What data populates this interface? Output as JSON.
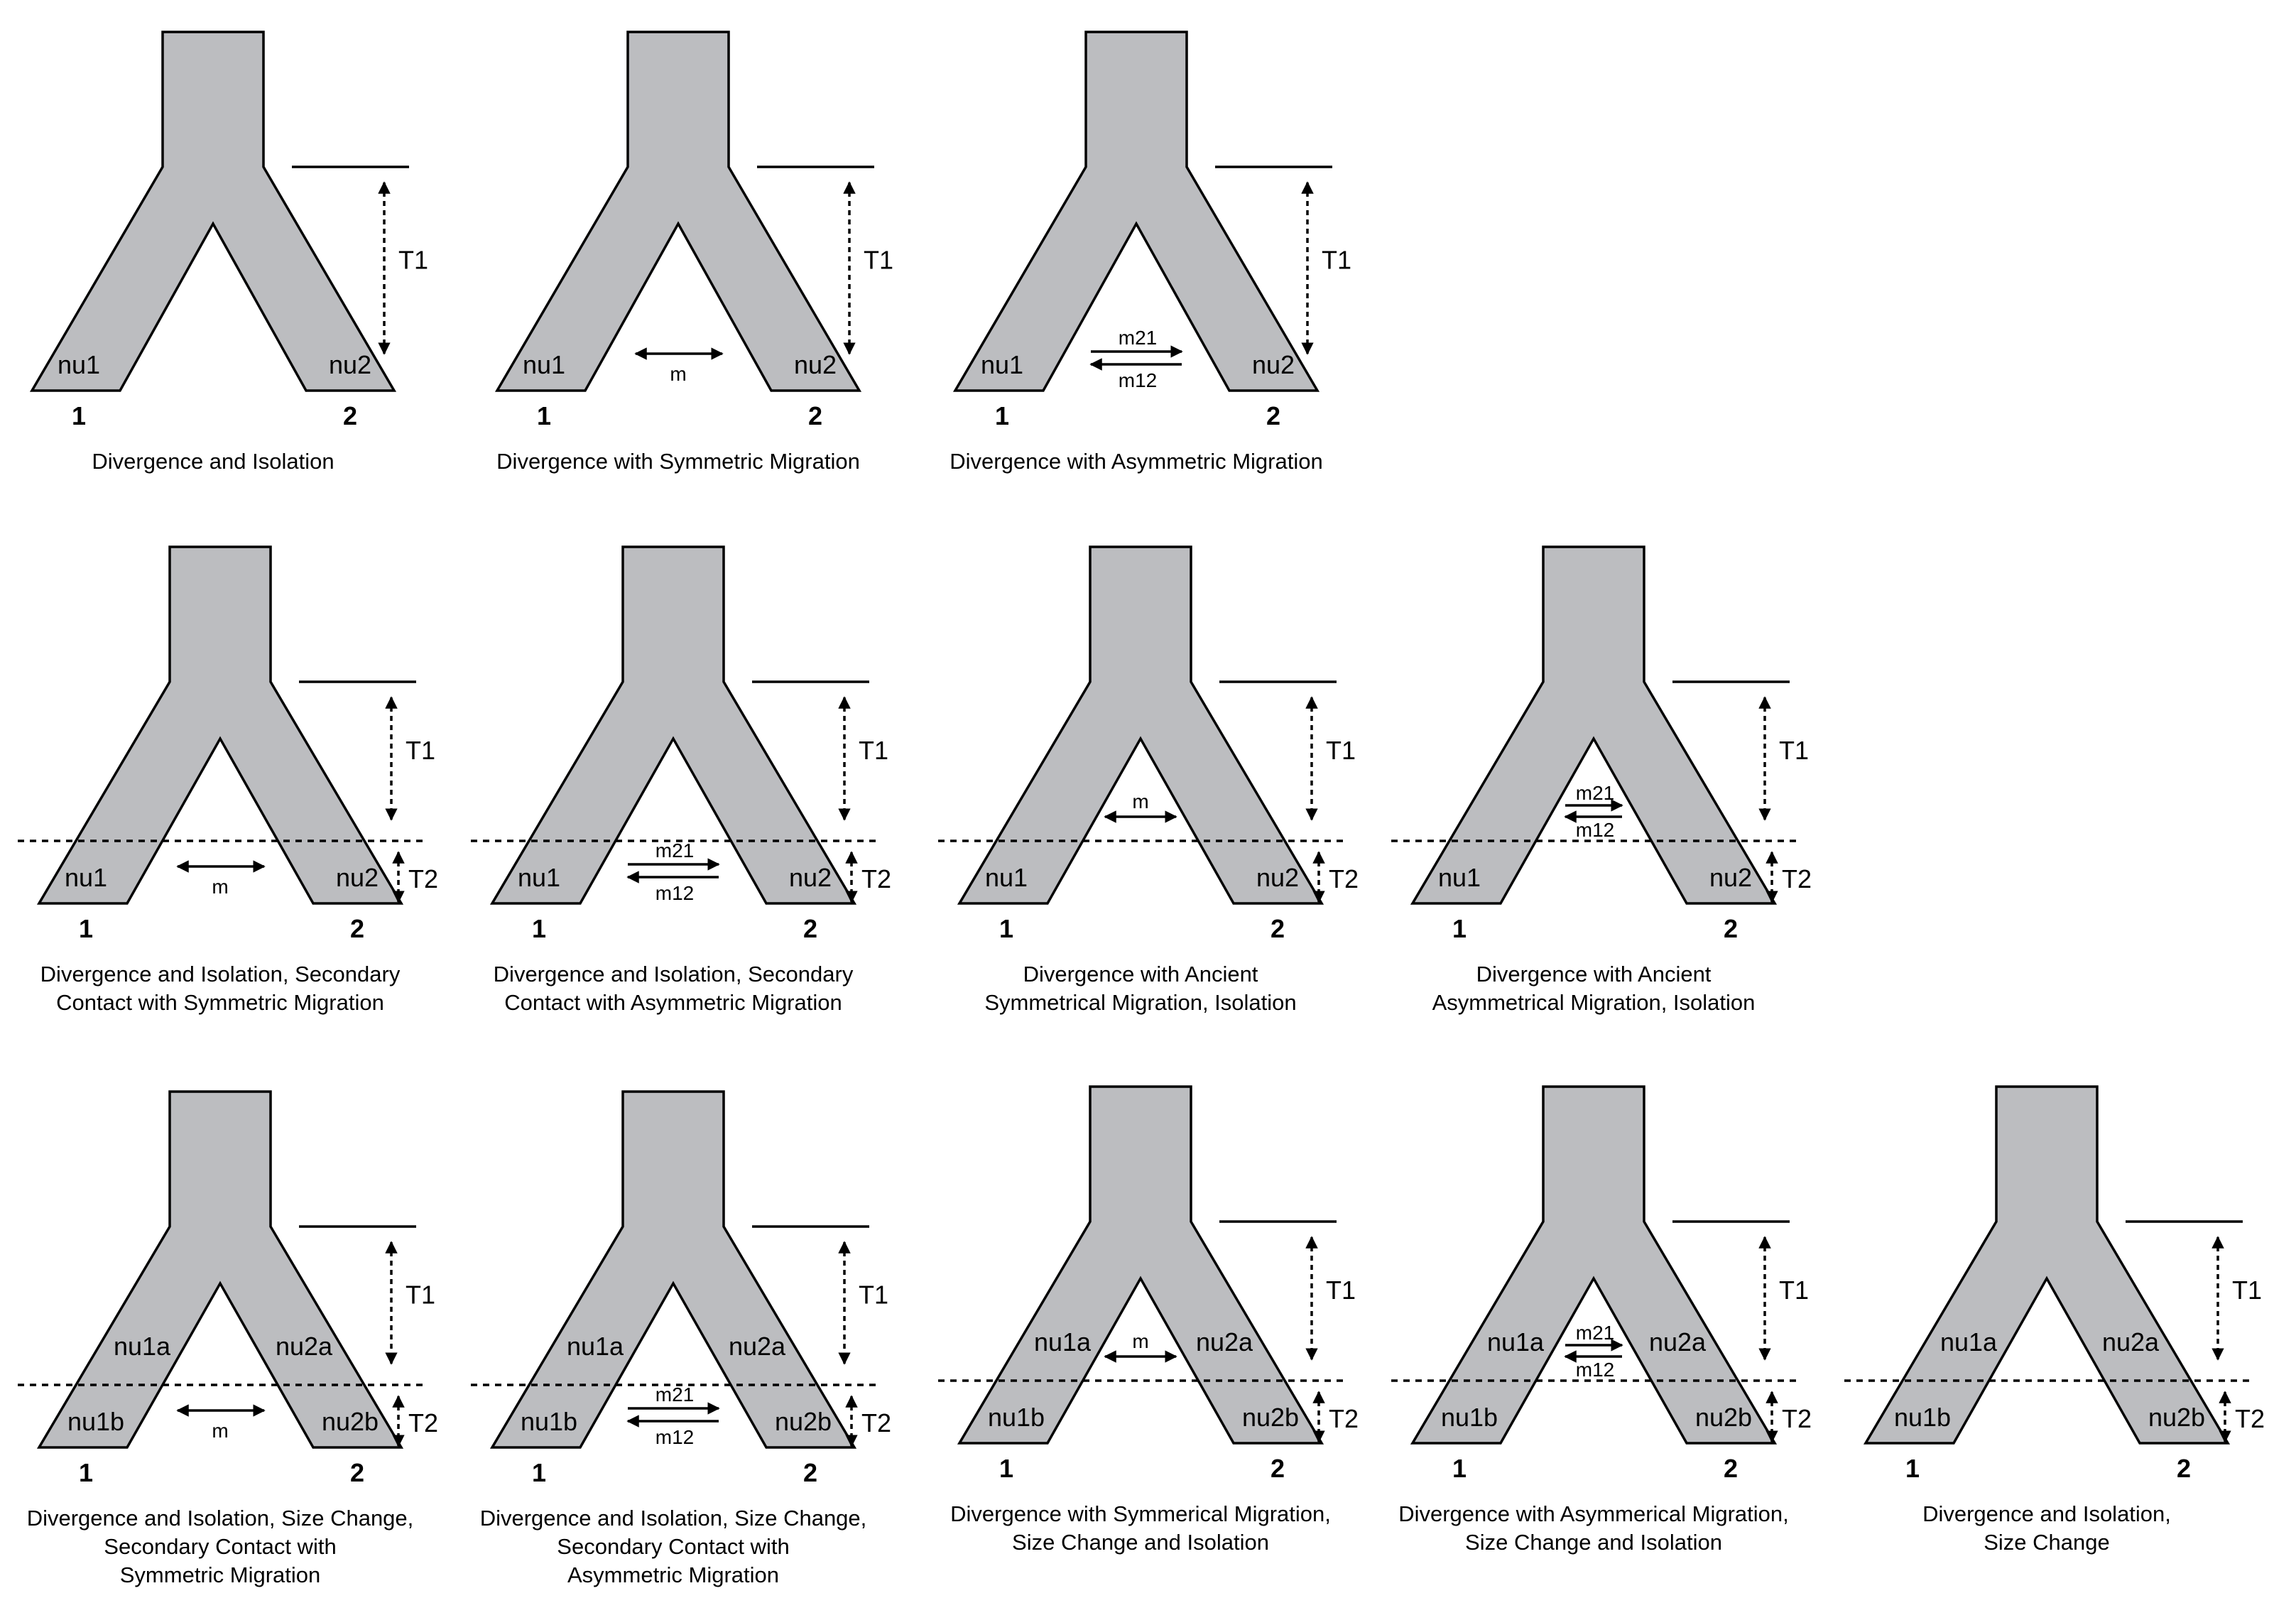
{
  "colors": {
    "population": "#bcbdc0",
    "stroke": "#000000",
    "background": "#ffffff"
  },
  "rows": [
    {
      "panels": [
        {
          "id": "p11",
          "type": "split",
          "migration": "none",
          "pop_labels": [
            "nu1",
            "nu2"
          ],
          "pop_numbers": [
            "1",
            "2"
          ],
          "time_labels": [
            "T1"
          ],
          "caption": [
            "Divergence and Isolation"
          ]
        },
        {
          "id": "p12",
          "type": "split",
          "migration": "sym",
          "pop_labels": [
            "nu1",
            "nu2"
          ],
          "pop_numbers": [
            "1",
            "2"
          ],
          "time_labels": [
            "T1"
          ],
          "migration_labels": [
            "m"
          ],
          "caption": [
            "Divergence with Symmetric Migration"
          ]
        },
        {
          "id": "p13",
          "type": "split",
          "migration": "asym",
          "pop_labels": [
            "nu1",
            "nu2"
          ],
          "pop_numbers": [
            "1",
            "2"
          ],
          "time_labels": [
            "T1"
          ],
          "migration_labels": [
            "m21",
            "m12"
          ],
          "caption": [
            "Divergence with Asymmetric Migration"
          ]
        }
      ]
    },
    {
      "panels": [
        {
          "id": "p21",
          "type": "two-epoch",
          "migration": "sym-late",
          "pop_labels": [
            "nu1",
            "nu2"
          ],
          "pop_numbers": [
            "1",
            "2"
          ],
          "time_labels": [
            "T1",
            "T2"
          ],
          "migration_labels": [
            "m"
          ],
          "caption": [
            "Divergence and Isolation, Secondary",
            "Contact with Symmetric Migration"
          ]
        },
        {
          "id": "p22",
          "type": "two-epoch",
          "migration": "asym-late",
          "pop_labels": [
            "nu1",
            "nu2"
          ],
          "pop_numbers": [
            "1",
            "2"
          ],
          "time_labels": [
            "T1",
            "T2"
          ],
          "migration_labels": [
            "m21",
            "m12"
          ],
          "caption": [
            "Divergence and Isolation, Secondary",
            "Contact with Asymmetric Migration"
          ]
        },
        {
          "id": "p23",
          "type": "two-epoch",
          "migration": "sym-early",
          "pop_labels": [
            "nu1",
            "nu2"
          ],
          "pop_numbers": [
            "1",
            "2"
          ],
          "time_labels": [
            "T1",
            "T2"
          ],
          "migration_labels": [
            "m"
          ],
          "caption": [
            "Divergence with Ancient",
            "Symmetrical Migration, Isolation"
          ]
        },
        {
          "id": "p24",
          "type": "two-epoch",
          "migration": "asym-early",
          "pop_labels": [
            "nu1",
            "nu2"
          ],
          "pop_numbers": [
            "1",
            "2"
          ],
          "time_labels": [
            "T1",
            "T2"
          ],
          "migration_labels": [
            "m21",
            "m12"
          ],
          "caption": [
            "Divergence with Ancient",
            "Asymmetrical Migration, Isolation"
          ]
        }
      ]
    },
    {
      "panels": [
        {
          "id": "p31",
          "type": "size-change",
          "migration": "sym-late",
          "pop_labels": [
            "nu1a",
            "nu2a",
            "nu1b",
            "nu2b"
          ],
          "pop_numbers": [
            "1",
            "2"
          ],
          "time_labels": [
            "T1",
            "T2"
          ],
          "migration_labels": [
            "m"
          ],
          "caption": [
            "Divergence and Isolation, Size Change,",
            "Secondary Contact with",
            "Symmetric Migration"
          ]
        },
        {
          "id": "p32",
          "type": "size-change",
          "migration": "asym-late",
          "pop_labels": [
            "nu1a",
            "nu2a",
            "nu1b",
            "nu2b"
          ],
          "pop_numbers": [
            "1",
            "2"
          ],
          "time_labels": [
            "T1",
            "T2"
          ],
          "migration_labels": [
            "m21",
            "m12"
          ],
          "caption": [
            "Divergence and Isolation, Size Change,",
            "Secondary Contact with",
            "Asymmetric Migration"
          ]
        },
        {
          "id": "p33",
          "type": "size-change",
          "migration": "sym-early",
          "pop_labels": [
            "nu1a",
            "nu2a",
            "nu1b",
            "nu2b"
          ],
          "pop_numbers": [
            "1",
            "2"
          ],
          "time_labels": [
            "T1",
            "T2"
          ],
          "migration_labels": [
            "m"
          ],
          "caption": [
            "Divergence with Symmerical Migration,",
            "Size Change and Isolation"
          ]
        },
        {
          "id": "p34",
          "type": "size-change",
          "migration": "asym-early",
          "pop_labels": [
            "nu1a",
            "nu2a",
            "nu1b",
            "nu2b"
          ],
          "pop_numbers": [
            "1",
            "2"
          ],
          "time_labels": [
            "T1",
            "T2"
          ],
          "migration_labels": [
            "m21",
            "m12"
          ],
          "caption": [
            "Divergence with Asymmerical Migration,",
            "Size Change and Isolation"
          ]
        },
        {
          "id": "p35",
          "type": "size-change",
          "migration": "none",
          "pop_labels": [
            "nu1a",
            "nu2a",
            "nu1b",
            "nu2b"
          ],
          "pop_numbers": [
            "1",
            "2"
          ],
          "time_labels": [
            "T1",
            "T2"
          ],
          "caption": [
            "Divergence and Isolation,",
            "Size Change"
          ]
        }
      ]
    }
  ]
}
